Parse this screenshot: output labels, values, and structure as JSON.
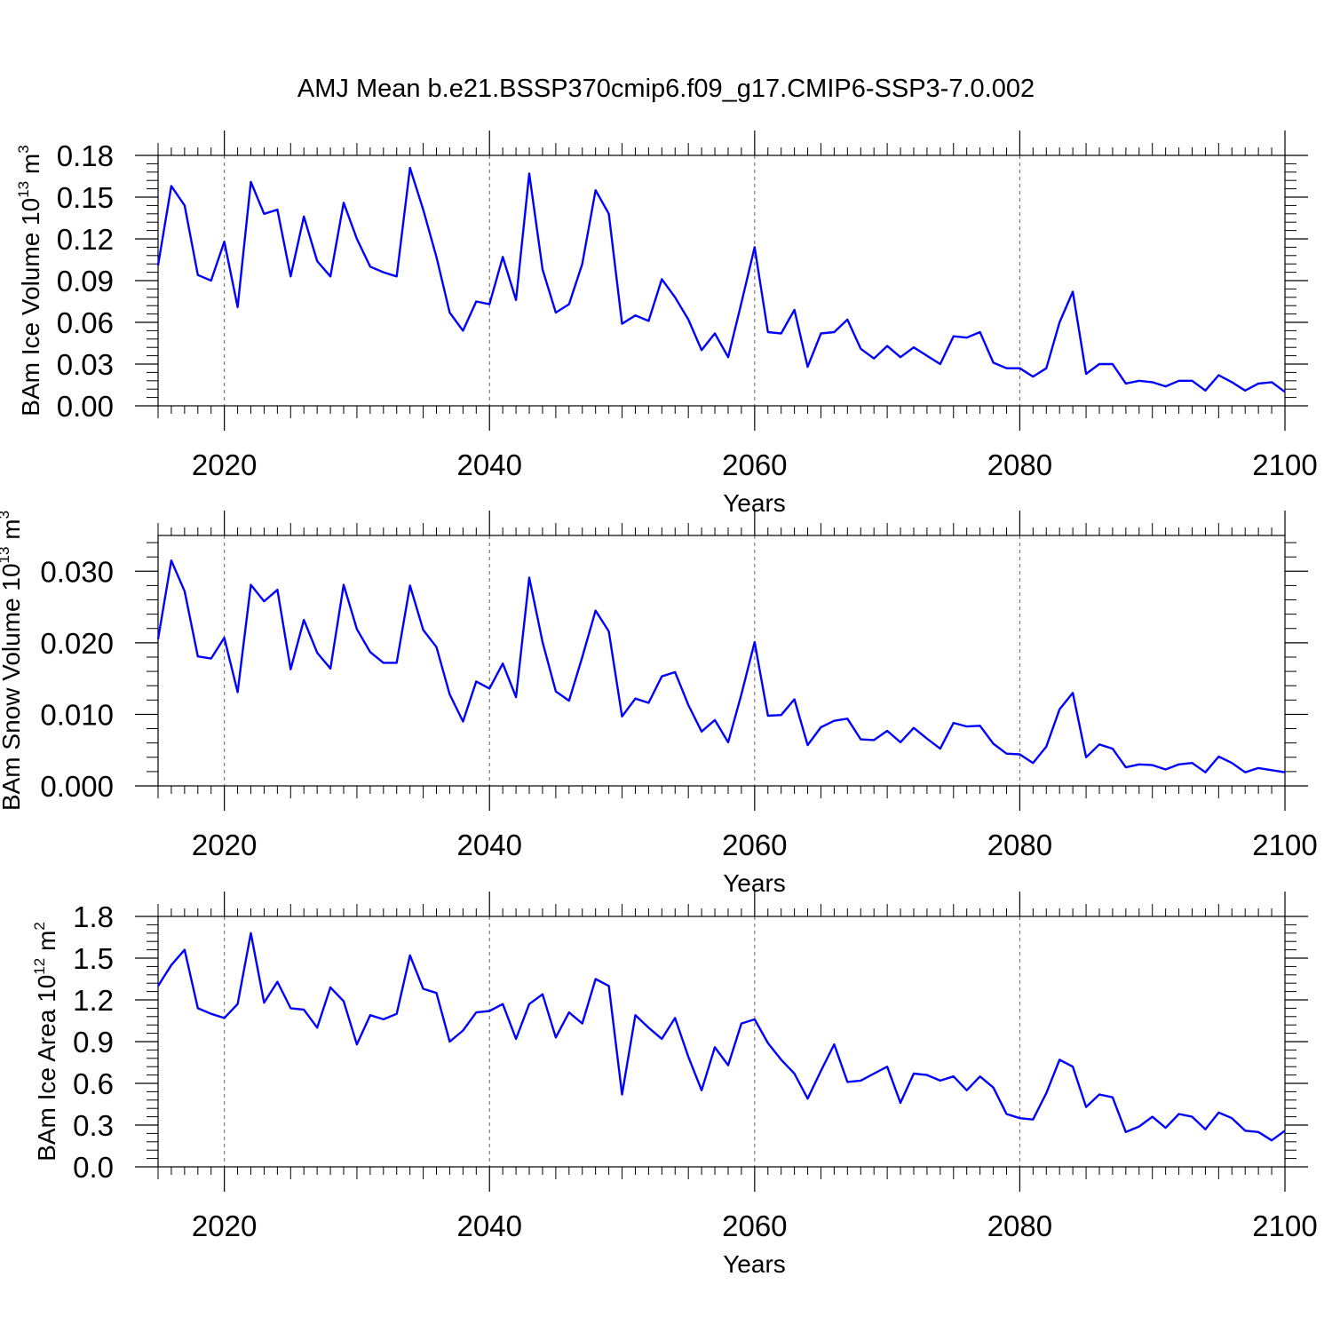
{
  "title": "AMJ Mean b.e21.BSSP370cmip6.f09_g17.CMIP6-SSP3-7.0.002",
  "chart_data": [
    {
      "type": "line",
      "xlabel": "Years",
      "ylabel": "BAm Ice Volume 10",
      "ylabel_exp": "13",
      "ylabel_unit": " m",
      "ylabel_unit_exp": "3",
      "xlim": [
        2015,
        2100
      ],
      "ylim": [
        0,
        0.18
      ],
      "yticks": [
        0,
        0.03,
        0.06,
        0.09,
        0.12,
        0.15,
        0.18
      ],
      "ytick_labels": [
        "0.00",
        "0.03",
        "0.06",
        "0.09",
        "0.12",
        "0.15",
        "0.18"
      ],
      "xticks": [
        2020,
        2040,
        2060,
        2080,
        2100
      ],
      "xtick_labels": [
        "2020",
        "2040",
        "2060",
        "2080",
        "2100"
      ],
      "grid": "vertical dashed at major x ticks",
      "color": "#0000ff",
      "series": [
        {
          "x": [
            2015,
            2016,
            2017,
            2018,
            2019,
            2020,
            2021,
            2022,
            2023,
            2024,
            2025,
            2026,
            2027,
            2028,
            2029,
            2030,
            2031,
            2032,
            2033,
            2034,
            2035,
            2036,
            2037,
            2038,
            2039,
            2040,
            2041,
            2042,
            2043,
            2044,
            2045,
            2046,
            2047,
            2048,
            2049,
            2050,
            2051,
            2052,
            2053,
            2054,
            2055,
            2056,
            2057,
            2058,
            2059,
            2060,
            2061,
            2062,
            2063,
            2064,
            2065,
            2066,
            2067,
            2068,
            2069,
            2070,
            2071,
            2072,
            2073,
            2074,
            2075,
            2076,
            2077,
            2078,
            2079,
            2080,
            2081,
            2082,
            2083,
            2084,
            2085,
            2086,
            2087,
            2088,
            2089,
            2090,
            2091,
            2092,
            2093,
            2094,
            2095,
            2096,
            2097,
            2098,
            2099,
            2100
          ],
          "values": [
            0.101,
            0.158,
            0.144,
            0.094,
            0.09,
            0.118,
            0.071,
            0.161,
            0.138,
            0.141,
            0.093,
            0.136,
            0.104,
            0.093,
            0.146,
            0.12,
            0.1,
            0.096,
            0.093,
            0.171,
            0.141,
            0.107,
            0.067,
            0.054,
            0.075,
            0.073,
            0.107,
            0.076,
            0.167,
            0.098,
            0.067,
            0.073,
            0.102,
            0.155,
            0.138,
            0.059,
            0.065,
            0.061,
            0.091,
            0.078,
            0.062,
            0.04,
            0.052,
            0.035,
            0.074,
            0.114,
            0.053,
            0.052,
            0.069,
            0.028,
            0.052,
            0.053,
            0.062,
            0.041,
            0.034,
            0.043,
            0.035,
            0.042,
            0.036,
            0.03,
            0.05,
            0.049,
            0.053,
            0.031,
            0.027,
            0.027,
            0.021,
            0.027,
            0.06,
            0.082,
            0.023,
            0.03,
            0.03,
            0.016,
            0.018,
            0.017,
            0.014,
            0.018,
            0.018,
            0.011,
            0.022,
            0.017,
            0.011,
            0.016,
            0.017,
            0.01
          ]
        }
      ]
    },
    {
      "type": "line",
      "xlabel": "Years",
      "ylabel": "BAm Snow Volume 10",
      "ylabel_exp": "13",
      "ylabel_unit": " m",
      "ylabel_unit_exp": "3",
      "xlim": [
        2015,
        2100
      ],
      "ylim": [
        0,
        0.035
      ],
      "yticks": [
        0,
        0.01,
        0.02,
        0.03
      ],
      "ytick_labels": [
        "0.000",
        "0.010",
        "0.020",
        "0.030"
      ],
      "xticks": [
        2020,
        2040,
        2060,
        2080,
        2100
      ],
      "xtick_labels": [
        "2020",
        "2040",
        "2060",
        "2080",
        "2100"
      ],
      "grid": "vertical dashed at major x ticks",
      "color": "#0000ff",
      "series": [
        {
          "x": [
            2015,
            2016,
            2017,
            2018,
            2019,
            2020,
            2021,
            2022,
            2023,
            2024,
            2025,
            2026,
            2027,
            2028,
            2029,
            2030,
            2031,
            2032,
            2033,
            2034,
            2035,
            2036,
            2037,
            2038,
            2039,
            2040,
            2041,
            2042,
            2043,
            2044,
            2045,
            2046,
            2047,
            2048,
            2049,
            2050,
            2051,
            2052,
            2053,
            2054,
            2055,
            2056,
            2057,
            2058,
            2059,
            2060,
            2061,
            2062,
            2063,
            2064,
            2065,
            2066,
            2067,
            2068,
            2069,
            2070,
            2071,
            2072,
            2073,
            2074,
            2075,
            2076,
            2077,
            2078,
            2079,
            2080,
            2081,
            2082,
            2083,
            2084,
            2085,
            2086,
            2087,
            2088,
            2089,
            2090,
            2091,
            2092,
            2093,
            2094,
            2095,
            2096,
            2097,
            2098,
            2099,
            2100
          ],
          "values": [
            0.0205,
            0.0315,
            0.0272,
            0.0181,
            0.0178,
            0.0207,
            0.0131,
            0.0281,
            0.0258,
            0.0274,
            0.0163,
            0.0232,
            0.0186,
            0.0164,
            0.0281,
            0.0219,
            0.0187,
            0.0172,
            0.0172,
            0.028,
            0.0218,
            0.0194,
            0.0128,
            0.009,
            0.0146,
            0.0136,
            0.0171,
            0.0124,
            0.0291,
            0.0201,
            0.0132,
            0.0119,
            0.018,
            0.0245,
            0.0216,
            0.0097,
            0.0122,
            0.0116,
            0.0153,
            0.0159,
            0.0113,
            0.0076,
            0.0092,
            0.0061,
            0.0128,
            0.0201,
            0.0098,
            0.0099,
            0.0121,
            0.0057,
            0.0082,
            0.0091,
            0.0094,
            0.0065,
            0.0064,
            0.0077,
            0.0061,
            0.0081,
            0.0066,
            0.0052,
            0.0088,
            0.0083,
            0.0084,
            0.0059,
            0.0045,
            0.0044,
            0.0032,
            0.0055,
            0.0107,
            0.013,
            0.004,
            0.0058,
            0.0052,
            0.0026,
            0.003,
            0.0029,
            0.0023,
            0.003,
            0.0032,
            0.0019,
            0.0041,
            0.0032,
            0.0019,
            0.0025,
            0.0022,
            0.0019
          ]
        }
      ]
    },
    {
      "type": "line",
      "xlabel": "Years",
      "ylabel": "BAm Ice Area 10",
      "ylabel_exp": "12",
      "ylabel_unit": " m",
      "ylabel_unit_exp": "2",
      "xlim": [
        2015,
        2100
      ],
      "ylim": [
        0,
        1.8
      ],
      "yticks": [
        0,
        0.3,
        0.6,
        0.9,
        1.2,
        1.5,
        1.8
      ],
      "ytick_labels": [
        "0.0",
        "0.3",
        "0.6",
        "0.9",
        "1.2",
        "1.5",
        "1.8"
      ],
      "xticks": [
        2020,
        2040,
        2060,
        2080,
        2100
      ],
      "xtick_labels": [
        "2020",
        "2040",
        "2060",
        "2080",
        "2100"
      ],
      "grid": "vertical dashed at major x ticks",
      "color": "#0000ff",
      "series": [
        {
          "x": [
            2015,
            2016,
            2017,
            2018,
            2019,
            2020,
            2021,
            2022,
            2023,
            2024,
            2025,
            2026,
            2027,
            2028,
            2029,
            2030,
            2031,
            2032,
            2033,
            2034,
            2035,
            2036,
            2037,
            2038,
            2039,
            2040,
            2041,
            2042,
            2043,
            2044,
            2045,
            2046,
            2047,
            2048,
            2049,
            2050,
            2051,
            2052,
            2053,
            2054,
            2055,
            2056,
            2057,
            2058,
            2059,
            2060,
            2061,
            2062,
            2063,
            2064,
            2065,
            2066,
            2067,
            2068,
            2069,
            2070,
            2071,
            2072,
            2073,
            2074,
            2075,
            2076,
            2077,
            2078,
            2079,
            2080,
            2081,
            2082,
            2083,
            2084,
            2085,
            2086,
            2087,
            2088,
            2089,
            2090,
            2091,
            2092,
            2093,
            2094,
            2095,
            2096,
            2097,
            2098,
            2099,
            2100
          ],
          "values": [
            1.3,
            1.45,
            1.56,
            1.14,
            1.1,
            1.07,
            1.17,
            1.68,
            1.18,
            1.33,
            1.14,
            1.13,
            1.0,
            1.29,
            1.19,
            0.88,
            1.09,
            1.06,
            1.1,
            1.52,
            1.28,
            1.25,
            0.9,
            0.98,
            1.11,
            1.12,
            1.17,
            0.92,
            1.17,
            1.24,
            0.93,
            1.11,
            1.03,
            1.35,
            1.3,
            0.52,
            1.09,
            1.0,
            0.92,
            1.07,
            0.79,
            0.55,
            0.86,
            0.73,
            1.03,
            1.06,
            0.89,
            0.77,
            0.67,
            0.49,
            0.69,
            0.88,
            0.61,
            0.62,
            0.67,
            0.72,
            0.46,
            0.67,
            0.66,
            0.62,
            0.65,
            0.55,
            0.65,
            0.57,
            0.38,
            0.35,
            0.34,
            0.53,
            0.77,
            0.72,
            0.43,
            0.52,
            0.5,
            0.25,
            0.29,
            0.36,
            0.28,
            0.38,
            0.36,
            0.27,
            0.39,
            0.35,
            0.26,
            0.25,
            0.19,
            0.26
          ]
        }
      ]
    }
  ]
}
